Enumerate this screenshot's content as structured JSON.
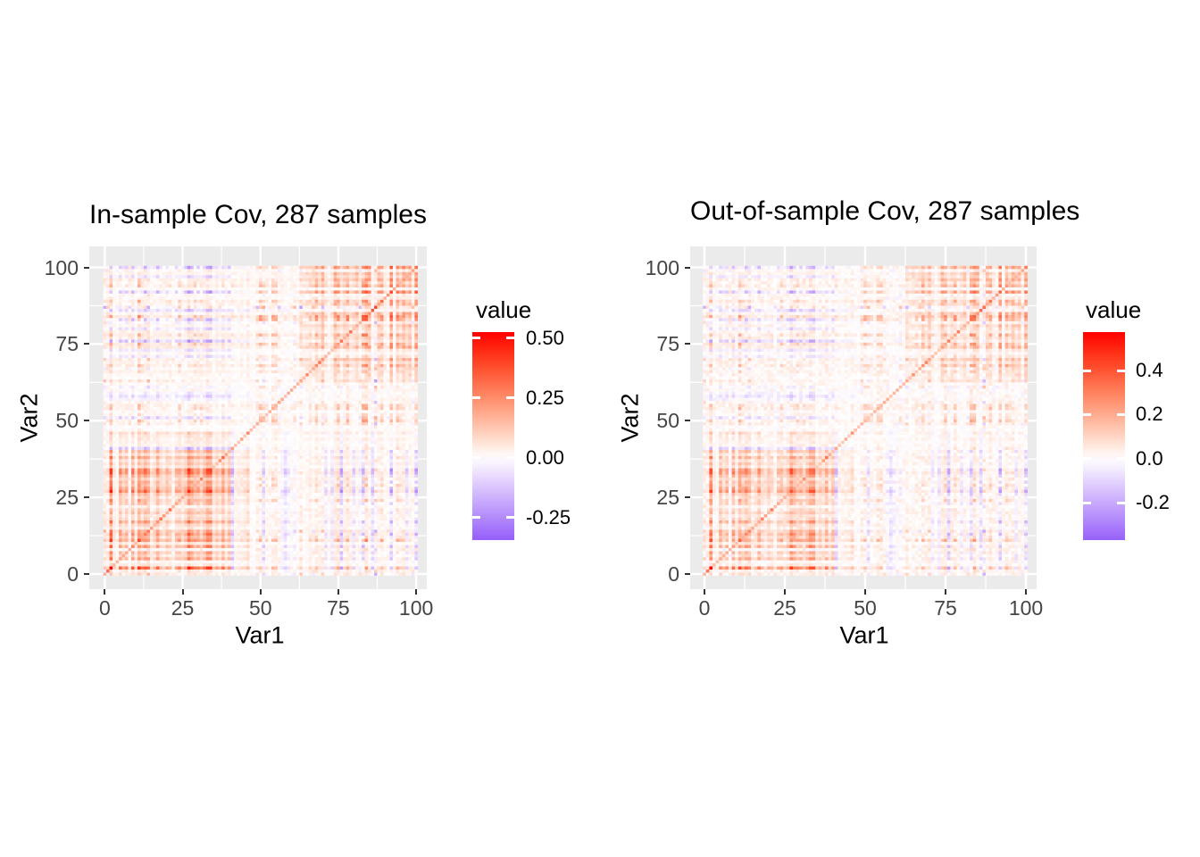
{
  "page": {
    "background": "#ffffff"
  },
  "panel_style": {
    "background": "#EBEBEB",
    "grid_color": "#FFFFFF"
  },
  "chart_data": [
    {
      "type": "heatmap",
      "title": "In-sample Cov, 287 samples",
      "xlabel": "Var1",
      "ylabel": "Var2",
      "samples": 287,
      "matrix_size": 101,
      "x_tick_labels": [
        "0",
        "25",
        "50",
        "75",
        "100"
      ],
      "x_tick_values": [
        0,
        25,
        50,
        75,
        100
      ],
      "y_tick_labels": [
        "0",
        "25",
        "50",
        "75",
        "100"
      ],
      "y_tick_values": [
        0,
        25,
        50,
        75,
        100
      ],
      "grid_minor": [
        12.5,
        37.5,
        62.5,
        87.5
      ],
      "x_range": [
        0,
        100
      ],
      "y_range": [
        0,
        100
      ],
      "value_range": [
        -0.345,
        0.525
      ],
      "legend": {
        "title": "value",
        "tick_labels": [
          "0.50",
          "0.25",
          "0.00",
          "-0.25"
        ],
        "tick_values": [
          0.5,
          0.25,
          0.0,
          -0.25
        ]
      },
      "color_scale": {
        "type": "diverging",
        "high": "#FF0000",
        "mid": "#FFFFFF",
        "low": "#5A0AF8",
        "midpoint": 0
      },
      "generator": {
        "seed_structure": 20240287,
        "seed_noise": 71,
        "noise_amp": 0.055,
        "scale": 1.0
      }
    },
    {
      "type": "heatmap",
      "title": "Out-of-sample Cov, 287 samples",
      "xlabel": "Var1",
      "ylabel": "Var2",
      "samples": 287,
      "matrix_size": 101,
      "x_tick_labels": [
        "0",
        "25",
        "50",
        "75",
        "100"
      ],
      "x_tick_values": [
        0,
        25,
        50,
        75,
        100
      ],
      "y_tick_labels": [
        "0",
        "25",
        "50",
        "75",
        "100"
      ],
      "y_tick_values": [
        0,
        25,
        50,
        75,
        100
      ],
      "grid_minor": [
        12.5,
        37.5,
        62.5,
        87.5
      ],
      "x_range": [
        0,
        100
      ],
      "y_range": [
        0,
        100
      ],
      "value_range": [
        -0.37,
        0.575
      ],
      "legend": {
        "title": "value",
        "tick_labels": [
          "0.4",
          "0.2",
          "0.0",
          "-0.2"
        ],
        "tick_values": [
          0.4,
          0.2,
          0.0,
          -0.2
        ]
      },
      "color_scale": {
        "type": "diverging",
        "high": "#FF0000",
        "mid": "#FFFFFF",
        "low": "#5A0AF8",
        "midpoint": 0
      },
      "generator": {
        "seed_structure": 20240287,
        "seed_noise": 929,
        "noise_amp": 0.085,
        "scale": 0.94
      }
    }
  ]
}
